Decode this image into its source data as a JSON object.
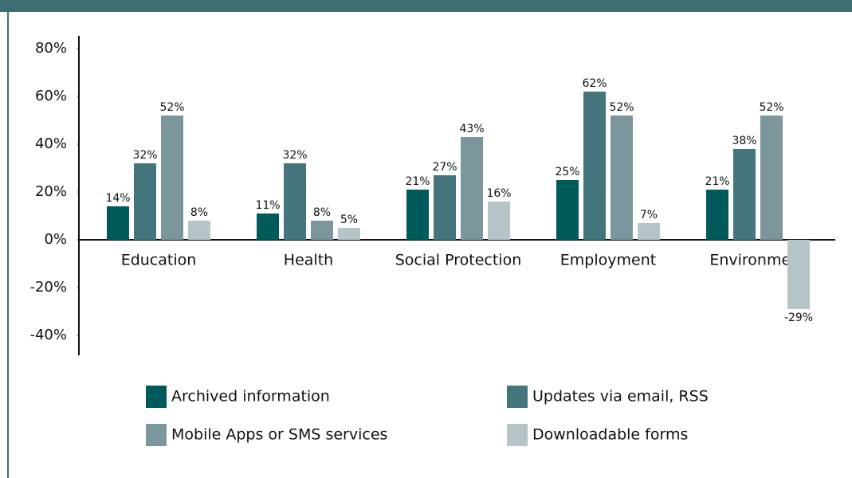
{
  "chart_data": {
    "type": "bar",
    "categories": [
      "Education",
      "Health",
      "Social Protection",
      "Employment",
      "Environment"
    ],
    "series": [
      {
        "name": "Archived information",
        "color": "#005a5a",
        "values": [
          14,
          11,
          21,
          25,
          21
        ],
        "value_labels": [
          "14%",
          "11%",
          "21%",
          "25%",
          "21%"
        ]
      },
      {
        "name": "Updates via email, RSS",
        "color": "#44757c",
        "values": [
          32,
          32,
          27,
          62,
          38
        ],
        "value_labels": [
          "32%",
          "32%",
          "27%",
          "62%",
          "38%"
        ]
      },
      {
        "name": "Mobile Apps or SMS services",
        "color": "#7b979d",
        "values": [
          52,
          8,
          43,
          52,
          52
        ],
        "value_labels": [
          "52%",
          "8%",
          "43%",
          "52%",
          "52%"
        ]
      },
      {
        "name": "Downloadable forms",
        "color": "#b5c4c7",
        "values": [
          8,
          5,
          16,
          7,
          -29
        ],
        "value_labels": [
          "8%",
          "5%",
          "16%",
          "7%",
          "-29%"
        ]
      }
    ],
    "ylim": [
      -40,
      80
    ],
    "yticks": [
      {
        "value": -40,
        "label": "-40%"
      },
      {
        "value": -20,
        "label": "-20%"
      },
      {
        "value": 0,
        "label": "0%"
      },
      {
        "value": 20,
        "label": "20%"
      },
      {
        "value": 40,
        "label": "40%"
      },
      {
        "value": 60,
        "label": "60%"
      },
      {
        "value": 80,
        "label": "80%"
      }
    ],
    "grid": false
  }
}
